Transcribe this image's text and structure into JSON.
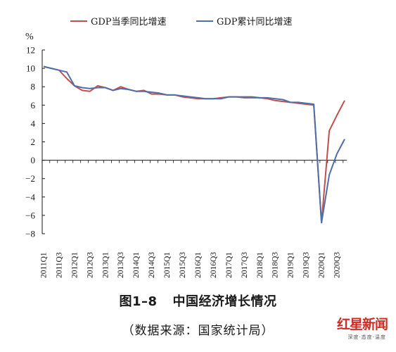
{
  "chart_data": {
    "type": "line",
    "unit": "%",
    "ylim": [
      -8,
      12
    ],
    "yticks": [
      12,
      10,
      8,
      6,
      4,
      2,
      0,
      -2,
      -4,
      -6,
      -8
    ],
    "ytick_labels": [
      "12",
      "10",
      "8",
      "6",
      "4",
      "2",
      "0",
      "−2",
      "−4",
      "−6",
      "−8"
    ],
    "categories": [
      "2011Q1",
      "2011Q2",
      "2011Q3",
      "2011Q4",
      "2012Q1",
      "2012Q2",
      "2012Q3",
      "2012Q4",
      "2013Q1",
      "2013Q2",
      "2013Q3",
      "2013Q4",
      "2014Q1",
      "2014Q2",
      "2014Q3",
      "2014Q4",
      "2015Q1",
      "2015Q2",
      "2015Q3",
      "2015Q4",
      "2016Q1",
      "2016Q2",
      "2016Q3",
      "2016Q4",
      "2017Q1",
      "2017Q2",
      "2017Q3",
      "2017Q4",
      "2018Q1",
      "2018Q2",
      "2018Q3",
      "2018Q4",
      "2019Q1",
      "2019Q2",
      "2019Q3",
      "2019Q4",
      "2020Q1",
      "2020Q2",
      "2020Q3",
      "2020Q4"
    ],
    "x_tick_labels": [
      "2011Q1",
      "2011Q3",
      "2012Q1",
      "2012Q3",
      "2013Q1",
      "2013Q3",
      "2014Q1",
      "2014Q3",
      "2015Q1",
      "2015Q3",
      "2016Q1",
      "2016Q3",
      "2017Q1",
      "2017Q3",
      "2018Q1",
      "2018Q3",
      "2019Q1",
      "2019Q3",
      "2020Q1",
      "2020Q3"
    ],
    "series": [
      {
        "name": "GDP当季同比增速",
        "color": "#c0504d",
        "values": [
          10.2,
          10.0,
          9.8,
          8.9,
          8.1,
          7.6,
          7.5,
          8.1,
          7.9,
          7.6,
          8.0,
          7.7,
          7.5,
          7.6,
          7.2,
          7.2,
          7.1,
          7.1,
          6.9,
          6.8,
          6.7,
          6.7,
          6.7,
          6.8,
          6.9,
          6.9,
          6.8,
          6.8,
          6.8,
          6.7,
          6.5,
          6.4,
          6.3,
          6.2,
          6.1,
          6.0,
          -6.8,
          3.2,
          4.9,
          6.5
        ]
      },
      {
        "name": "GDP累计同比增速",
        "color": "#4f6fa8",
        "values": [
          10.2,
          10.0,
          9.8,
          9.6,
          8.1,
          7.9,
          7.8,
          7.9,
          7.9,
          7.6,
          7.8,
          7.7,
          7.5,
          7.5,
          7.4,
          7.3,
          7.1,
          7.1,
          7.0,
          6.9,
          6.8,
          6.7,
          6.7,
          6.7,
          6.9,
          6.9,
          6.9,
          6.9,
          6.8,
          6.8,
          6.7,
          6.6,
          6.3,
          6.3,
          6.2,
          6.1,
          -6.8,
          -1.6,
          0.7,
          2.3
        ]
      }
    ],
    "grid": false,
    "legend_position": "top"
  },
  "caption": {
    "figure_number": "图1–8",
    "title": "中国经济增长情况",
    "source": "（数据来源：国家统计局）"
  },
  "watermark": {
    "brand": "红星新闻",
    "tagline": "深度·态度·温度"
  }
}
